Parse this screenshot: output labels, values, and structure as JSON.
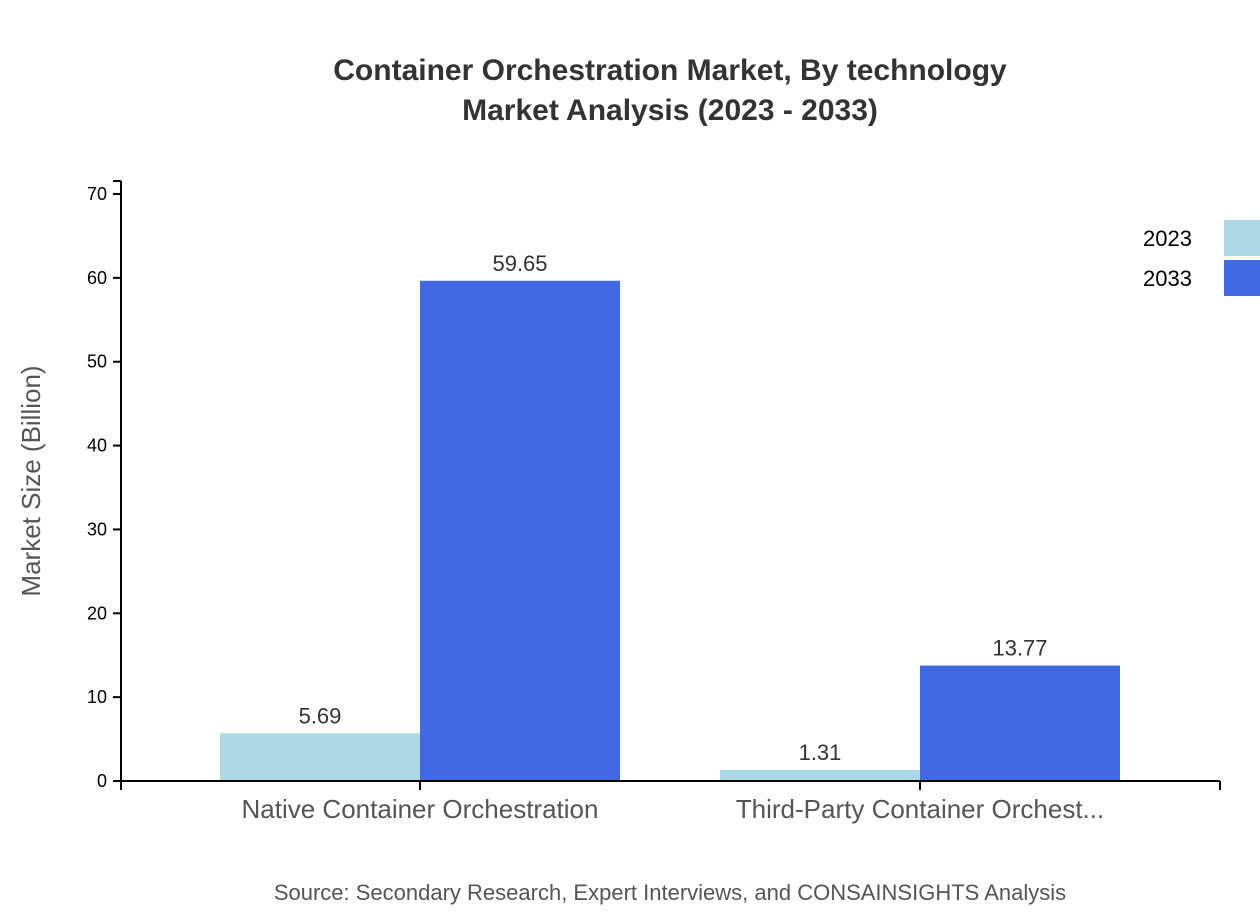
{
  "chart_data": {
    "type": "bar",
    "title": "Container Orchestration Market, By technology",
    "subtitle": "Market Analysis (2023 - 2033)",
    "xlabel": "",
    "ylabel": "Market Size (Billion)",
    "ylim": [
      0,
      70
    ],
    "yticks": [
      "0",
      "10",
      "20",
      "30",
      "40",
      "50",
      "60",
      "70"
    ],
    "categories": [
      "Native Container Orchestration",
      "Third-Party Container Orchest..."
    ],
    "series": [
      {
        "name": "2023",
        "color": "#ADD8E6",
        "values": [
          5.69,
          1.31
        ],
        "labels": [
          "5.69",
          "1.31"
        ]
      },
      {
        "name": "2033",
        "color": "#4169E1",
        "values": [
          59.65,
          13.77
        ],
        "labels": [
          "59.65",
          "13.77"
        ]
      }
    ],
    "grid": false,
    "legend_placement": "top-right",
    "source": "Source: Secondary Research, Expert Interviews, and CONSAINSIGHTS Analysis"
  }
}
